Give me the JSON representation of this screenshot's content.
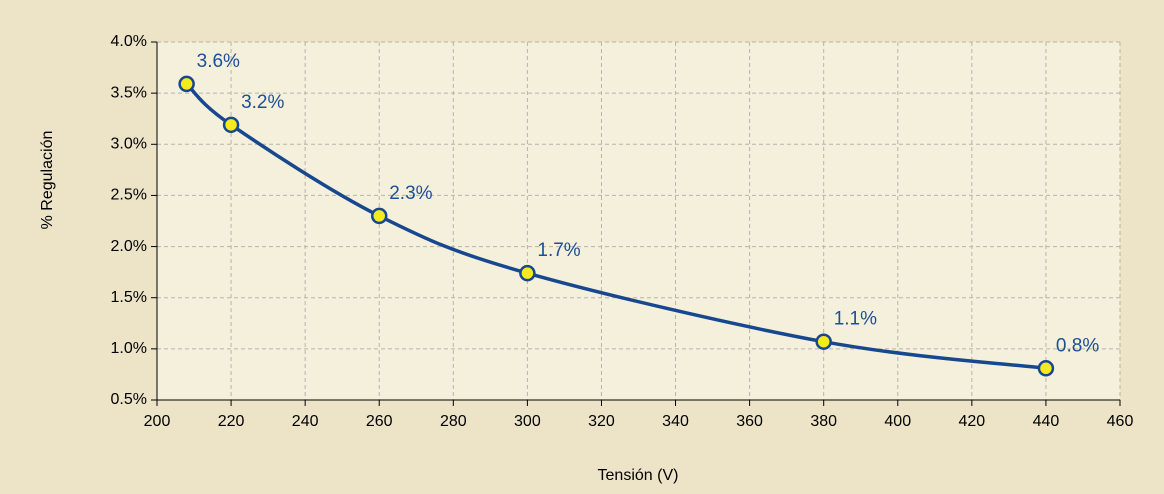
{
  "chart_data": {
    "type": "line",
    "x_label": "Tensión (V)",
    "y_label": "% Regulación",
    "x": [
      208,
      220,
      260,
      300,
      380,
      440
    ],
    "series": [
      {
        "color": "#17478f",
        "marker_color": "#f4ea1c",
        "values": [
          3.59,
          3.19,
          2.3,
          1.74,
          1.07,
          0.81
        ],
        "value_labels": [
          "3.6%",
          "3.2%",
          "2.3%",
          "1.7%",
          "1.1%",
          "0.8%"
        ]
      }
    ],
    "xlim": [
      200,
      460
    ],
    "xticks": [
      200,
      220,
      240,
      260,
      280,
      300,
      320,
      340,
      360,
      380,
      400,
      420,
      440,
      460
    ],
    "ylim": [
      0.5,
      4
    ],
    "yticks": [
      {
        "value": 0.5,
        "label": "0.5%"
      },
      {
        "value": 1,
        "label": "1.0%"
      },
      {
        "value": 1.5,
        "label": "1.5%"
      },
      {
        "value": 2,
        "label": "2.0%"
      },
      {
        "value": 2.5,
        "label": "2.5%"
      },
      {
        "value": 3,
        "label": "3.0%"
      },
      {
        "value": 3.5,
        "label": "3.5%"
      },
      {
        "value": 4,
        "label": "4.0%"
      }
    ],
    "grid": true
  }
}
